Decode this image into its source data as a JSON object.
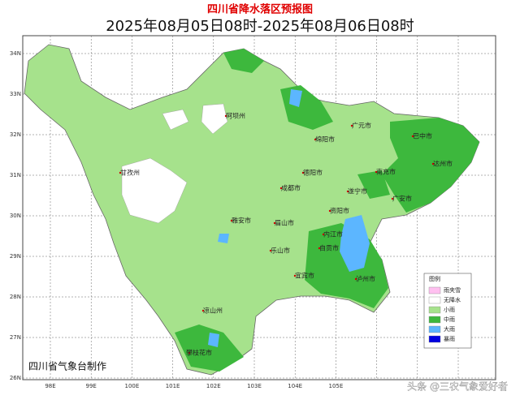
{
  "header": {
    "title": "四川省降水落区预报图",
    "subtitle": "2025年08月05日08时-2025年08月06日08时"
  },
  "map": {
    "lat_labels": [
      "34N",
      "33N",
      "32N",
      "31N",
      "30N",
      "29N",
      "28N",
      "27N",
      "26N"
    ],
    "lon_labels": [
      "98E",
      "99E",
      "100E",
      "101E",
      "102E",
      "103E",
      "104E",
      "105E"
    ],
    "regions": [
      "阿坝州",
      "甘孜州",
      "绵阳市",
      "广元市",
      "巴中市",
      "达州市",
      "南充市",
      "德阳市",
      "成都市",
      "遂宁市",
      "广安市",
      "雅安市",
      "眉山市",
      "资阳市",
      "乐山市",
      "内江市",
      "自贡市",
      "宜宾市",
      "泸州市",
      "凉山州",
      "攀枝花市"
    ]
  },
  "legend": {
    "title": "图例",
    "items": [
      {
        "label": "雨夹雪",
        "color": "#ffc0f0"
      },
      {
        "label": "无降水",
        "color": "#ffffff"
      },
      {
        "label": "小雨",
        "color": "#a6e28c"
      },
      {
        "label": "中雨",
        "color": "#3db83d"
      },
      {
        "label": "大雨",
        "color": "#5cb6ff"
      },
      {
        "label": "暴雨",
        "color": "#0000e0"
      }
    ]
  },
  "credit": "四川省气象台制作",
  "watermark": "头条 @三农气象爱好者"
}
